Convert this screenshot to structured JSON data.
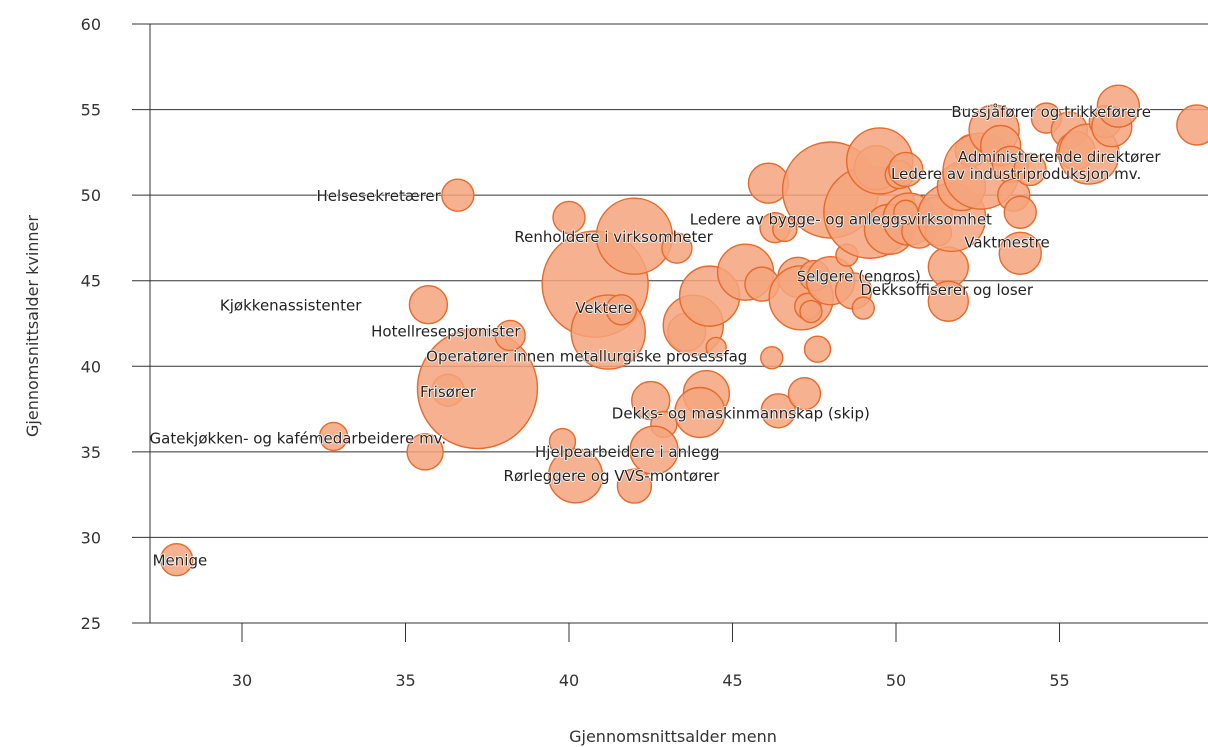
{
  "chart_data": {
    "type": "scatter",
    "variant": "bubble",
    "title": "",
    "xlabel": "Gjennomsnittsalder menn",
    "ylabel": "Gjennomsnittsalder kvinner",
    "xlim": [
      27,
      59
    ],
    "ylim": [
      25,
      60
    ],
    "xticks": [
      30,
      35,
      40,
      45,
      50,
      55
    ],
    "yticks": [
      25,
      30,
      35,
      40,
      45,
      50,
      55,
      60
    ],
    "grid": "horizontal",
    "legend": "none",
    "colors": {
      "bubble_fill": "#f4a57c",
      "bubble_stroke": "#e8692a",
      "grid": "#333333",
      "text": "#222222"
    },
    "points": [
      {
        "x": 28.0,
        "y": 28.7,
        "size": 16,
        "label": "Menige"
      },
      {
        "x": 32.8,
        "y": 35.9,
        "size": 14,
        "label": "Gatekjøkken- og kafémedarbeidere mv."
      },
      {
        "x": 35.6,
        "y": 35.0,
        "size": 18
      },
      {
        "x": 35.7,
        "y": 43.6,
        "size": 19,
        "label": "Kjøkkenassistenter"
      },
      {
        "x": 36.6,
        "y": 50.0,
        "size": 16,
        "label": "Helsesekretærer"
      },
      {
        "x": 36.3,
        "y": 38.6,
        "size": 16,
        "label": "Frisører"
      },
      {
        "x": 37.2,
        "y": 38.7,
        "size": 60
      },
      {
        "x": 38.2,
        "y": 41.8,
        "size": 15,
        "label": "Hotellresepsjonister"
      },
      {
        "x": 39.8,
        "y": 35.6,
        "size": 13
      },
      {
        "x": 40.0,
        "y": 48.7,
        "size": 16
      },
      {
        "x": 40.2,
        "y": 33.6,
        "size": 27,
        "label": "Rørleggere og VVS-montører"
      },
      {
        "x": 40.8,
        "y": 44.8,
        "size": 53
      },
      {
        "x": 41.2,
        "y": 42.0,
        "size": 37
      },
      {
        "x": 41.6,
        "y": 43.3,
        "size": 15,
        "label": "Vektere"
      },
      {
        "x": 42.0,
        "y": 47.6,
        "size": 38,
        "label": "Renholdere i virksomheter"
      },
      {
        "x": 42.0,
        "y": 33.0,
        "size": 17
      },
      {
        "x": 42.5,
        "y": 38.0,
        "size": 19
      },
      {
        "x": 42.9,
        "y": 36.6,
        "size": 13
      },
      {
        "x": 42.6,
        "y": 35.1,
        "size": 24,
        "label": "Hjelpearbeidere i anlegg"
      },
      {
        "x": 43.3,
        "y": 46.9,
        "size": 15
      },
      {
        "x": 43.6,
        "y": 42.0,
        "size": 19
      },
      {
        "x": 43.8,
        "y": 42.4,
        "size": 30
      },
      {
        "x": 44.2,
        "y": 38.4,
        "size": 23
      },
      {
        "x": 44.0,
        "y": 37.3,
        "size": 25,
        "label": "Dekks- og maskinmannskap (skip)"
      },
      {
        "x": 44.3,
        "y": 44.1,
        "size": 30
      },
      {
        "x": 45.4,
        "y": 45.5,
        "size": 28
      },
      {
        "x": 45.9,
        "y": 44.8,
        "size": 17
      },
      {
        "x": 46.1,
        "y": 50.7,
        "size": 20
      },
      {
        "x": 46.2,
        "y": 40.5,
        "size": 11
      },
      {
        "x": 46.3,
        "y": 48.1,
        "size": 15
      },
      {
        "x": 46.4,
        "y": 37.4,
        "size": 17
      },
      {
        "x": 46.6,
        "y": 48.0,
        "size": 12
      },
      {
        "x": 47.0,
        "y": 45.2,
        "size": 20
      },
      {
        "x": 47.1,
        "y": 44.0,
        "size": 32
      },
      {
        "x": 47.2,
        "y": 38.4,
        "size": 16
      },
      {
        "x": 47.3,
        "y": 43.5,
        "size": 13
      },
      {
        "x": 47.4,
        "y": 43.2,
        "size": 11
      },
      {
        "x": 47.5,
        "y": 45.3,
        "size": 15
      },
      {
        "x": 47.6,
        "y": 41.0,
        "size": 13
      },
      {
        "x": 48.0,
        "y": 45.0,
        "size": 24,
        "label": "Selgere (engros)"
      },
      {
        "x": 48.0,
        "y": 50.3,
        "size": 48
      },
      {
        "x": 48.5,
        "y": 46.5,
        "size": 11
      },
      {
        "x": 48.7,
        "y": 44.4,
        "size": 18
      },
      {
        "x": 49.0,
        "y": 43.4,
        "size": 11
      },
      {
        "x": 49.2,
        "y": 49.0,
        "size": 46
      },
      {
        "x": 49.4,
        "y": 51.6,
        "size": 22
      },
      {
        "x": 49.5,
        "y": 52.0,
        "size": 33
      },
      {
        "x": 49.8,
        "y": 48.0,
        "size": 25
      },
      {
        "x": 50.1,
        "y": 51.2,
        "size": 14
      },
      {
        "x": 50.3,
        "y": 51.5,
        "size": 17
      },
      {
        "x": 50.4,
        "y": 48.6,
        "size": 26
      },
      {
        "x": 50.7,
        "y": 47.9,
        "size": 17
      },
      {
        "x": 51.2,
        "y": 48.9,
        "size": 17
      },
      {
        "x": 51.3,
        "y": 47.8,
        "size": 13
      },
      {
        "x": 51.6,
        "y": 45.8,
        "size": 20,
        "label": "Dekksoffiserer og loser"
      },
      {
        "x": 51.6,
        "y": 43.8,
        "size": 20
      },
      {
        "x": 51.7,
        "y": 48.7,
        "size": 34
      },
      {
        "x": 52.0,
        "y": 50.5,
        "size": 24
      },
      {
        "x": 52.3,
        "y": 52.6,
        "size": 16
      },
      {
        "x": 52.6,
        "y": 51.4,
        "size": 38,
        "label": "Ledere av industriproduksjon mv."
      },
      {
        "x": 53.0,
        "y": 53.8,
        "size": 25
      },
      {
        "x": 53.2,
        "y": 52.9,
        "size": 20
      },
      {
        "x": 53.5,
        "y": 51.8,
        "size": 18
      },
      {
        "x": 53.6,
        "y": 50.0,
        "size": 16
      },
      {
        "x": 53.8,
        "y": 49.0,
        "size": 16
      },
      {
        "x": 53.8,
        "y": 46.6,
        "size": 21,
        "label": "Vaktmestre"
      },
      {
        "x": 54.1,
        "y": 51.5,
        "size": 16
      },
      {
        "x": 54.6,
        "y": 54.5,
        "size": 15
      },
      {
        "x": 55.3,
        "y": 53.8,
        "size": 18
      },
      {
        "x": 55.5,
        "y": 52.6,
        "size": 19
      },
      {
        "x": 55.9,
        "y": 52.4,
        "size": 30,
        "label": "Administrerende direktører"
      },
      {
        "x": 56.4,
        "y": 54.3,
        "size": 16
      },
      {
        "x": 56.6,
        "y": 54.0,
        "size": 20
      },
      {
        "x": 56.8,
        "y": 55.2,
        "size": 21,
        "label": "Bussjåfører og trikkeførere"
      },
      {
        "x": 59.2,
        "y": 54.1,
        "size": 20
      },
      {
        "x": 50.3,
        "y": 49.0,
        "size": 12,
        "label": "Ledere av bygge- og anleggsvirksomhet"
      },
      {
        "x": 44.5,
        "y": 41.1,
        "size": 10,
        "label": "Operatører innen metallurgiske prosessfag"
      }
    ]
  }
}
